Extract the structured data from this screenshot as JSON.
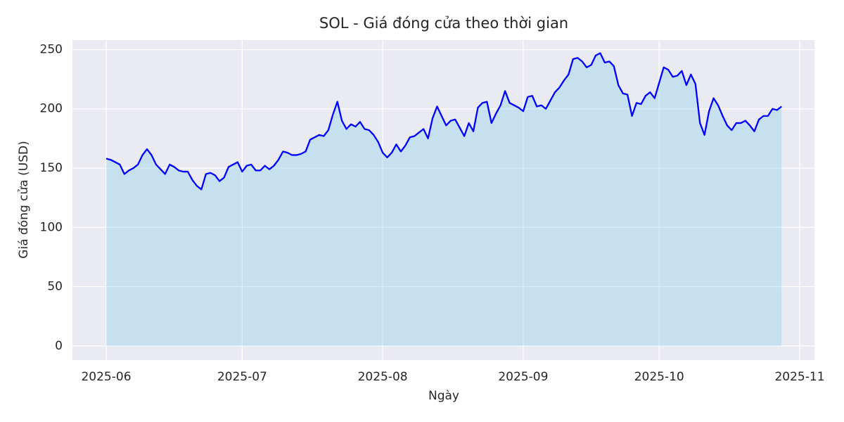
{
  "chart_data": {
    "type": "line",
    "title": "SOL - Giá đóng cửa theo thời gian",
    "x_label": "Ngày",
    "y_label": "Giá đóng cửa (USD)",
    "categories": [
      "2025-06",
      null,
      null,
      null,
      null,
      null,
      null,
      null,
      null,
      null,
      null,
      null,
      null,
      null,
      null,
      null,
      null,
      null,
      null,
      null,
      null,
      null,
      null,
      null,
      null,
      null,
      null,
      null,
      null,
      null,
      "2025-07",
      null,
      null,
      null,
      null,
      null,
      null,
      null,
      null,
      null,
      null,
      null,
      null,
      null,
      null,
      null,
      null,
      null,
      null,
      null,
      null,
      null,
      null,
      null,
      null,
      null,
      null,
      null,
      null,
      null,
      null,
      "2025-08",
      null,
      null,
      null,
      null,
      null,
      null,
      null,
      null,
      null,
      null,
      null,
      null,
      null,
      null,
      null,
      null,
      null,
      null,
      null,
      null,
      null,
      null,
      null,
      null,
      null,
      null,
      null,
      null,
      null,
      null,
      "2025-09",
      null,
      null,
      null,
      null,
      null,
      null,
      null,
      null,
      null,
      null,
      null,
      null,
      null,
      null,
      null,
      null,
      null,
      null,
      null,
      null,
      null,
      null,
      null,
      null,
      null,
      null,
      null,
      null,
      null,
      "2025-10",
      null,
      null,
      null,
      null,
      null,
      null,
      null,
      null,
      null,
      null,
      null,
      null,
      null,
      null,
      null,
      null,
      null,
      null,
      null,
      null,
      null,
      null,
      null,
      null,
      null,
      null,
      null,
      null,
      null,
      null,
      "2025-11"
    ],
    "series": [
      {
        "color": "#0000ff",
        "fill": "#87ceeb",
        "values": [
          158,
          157,
          155,
          153,
          145,
          148,
          150,
          153,
          161,
          166,
          161,
          153,
          149,
          145,
          153,
          151,
          148,
          147,
          147,
          140,
          135,
          132,
          145,
          146,
          144,
          139,
          142,
          151,
          153,
          155,
          147,
          152,
          153,
          148,
          148,
          152,
          149,
          152,
          157,
          164,
          163,
          161,
          161,
          162,
          164,
          174,
          176,
          178,
          177,
          182,
          195,
          206,
          190,
          183,
          187,
          185,
          189,
          183,
          182,
          178,
          172,
          163,
          159,
          163,
          170,
          164,
          169,
          176,
          177,
          180,
          183,
          175,
          192,
          202,
          194,
          186,
          190,
          191,
          184,
          177,
          188,
          181,
          201,
          205,
          206,
          188,
          196,
          203,
          215,
          205,
          203,
          201,
          198,
          210,
          211,
          202,
          203,
          200,
          207,
          214,
          218,
          224,
          229,
          242,
          243,
          240,
          235,
          237,
          245,
          247,
          239,
          240,
          236,
          220,
          213,
          212,
          194,
          205,
          204,
          211,
          214,
          209,
          222,
          235,
          233,
          227,
          228,
          232,
          220,
          229,
          221,
          188,
          178,
          198,
          209,
          203,
          194,
          186,
          182,
          188,
          188,
          190,
          186,
          181,
          191,
          194,
          194,
          200,
          199,
          202,
          null,
          null,
          null,
          null
        ]
      }
    ],
    "ylim": [
      -12,
      258
    ],
    "yticks": [
      0,
      50,
      100,
      150,
      200,
      250
    ],
    "grid": true
  }
}
